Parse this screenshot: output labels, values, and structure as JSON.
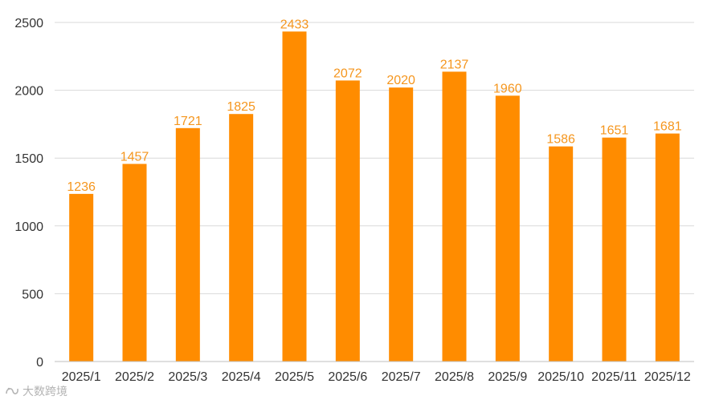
{
  "colors": {
    "bar": "#FF8C00",
    "data_label": "#F5961E",
    "grid": "#D9D9D9",
    "axis": "#BFBFBF",
    "tick_text": "#333333"
  },
  "watermark": {
    "icon": "logo-icon",
    "text": "大数跨境"
  },
  "chart_data": {
    "type": "bar",
    "title": "",
    "xlabel": "",
    "ylabel": "",
    "categories": [
      "2025/1",
      "2025/2",
      "2025/3",
      "2025/4",
      "2025/5",
      "2025/6",
      "2025/7",
      "2025/8",
      "2025/9",
      "2025/10",
      "2025/11",
      "2025/12"
    ],
    "values": [
      1236,
      1457,
      1721,
      1825,
      2433,
      2072,
      2020,
      2137,
      1960,
      1586,
      1651,
      1681
    ],
    "ylim": [
      0,
      2500
    ],
    "yticks": [
      0,
      500,
      1000,
      1500,
      2000,
      2500
    ],
    "grid": true,
    "legend": "none",
    "data_labels": true
  }
}
